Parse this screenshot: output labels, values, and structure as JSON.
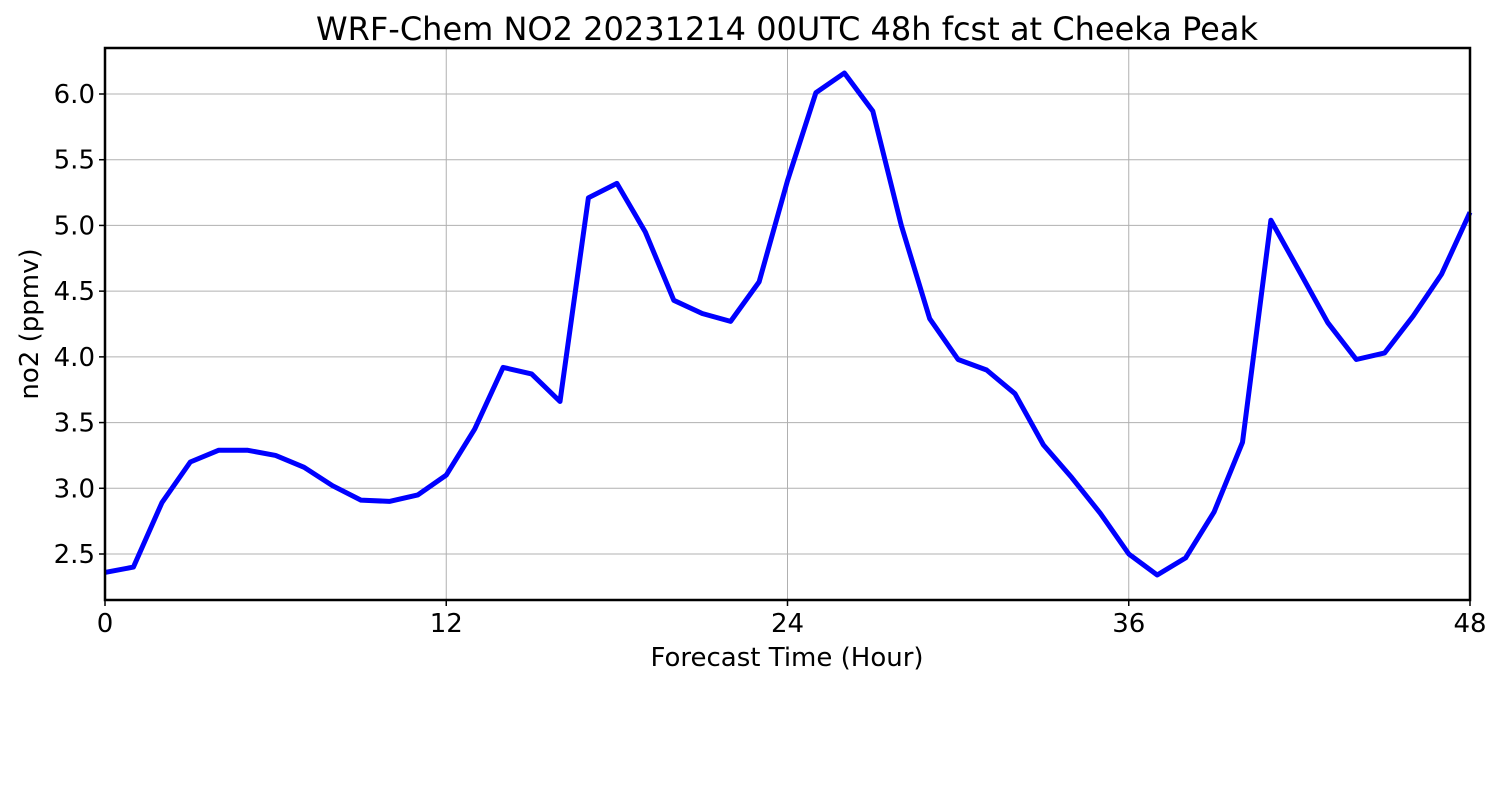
{
  "chart_data": {
    "type": "line",
    "title": "WRF-Chem NO2  20231214 00UTC 48h fcst at Cheeka Peak",
    "xlabel": "Forecast Time (Hour)",
    "ylabel": "no2  (ppmv)",
    "xlim": [
      0,
      48
    ],
    "ylim": [
      2.15,
      6.35
    ],
    "xticks": [
      0,
      12,
      24,
      36,
      48
    ],
    "xtick_labels": [
      "0",
      "12",
      "24",
      "36",
      "48"
    ],
    "yticks": [
      2.5,
      3.0,
      3.5,
      4.0,
      4.5,
      5.0,
      5.5,
      6.0
    ],
    "ytick_labels": [
      "2.5",
      "3.0",
      "3.5",
      "4.0",
      "4.5",
      "5.0",
      "5.5",
      "6.0"
    ],
    "grid": true,
    "series": [
      {
        "color": "#0000ff",
        "x": [
          0,
          1,
          2,
          3,
          4,
          5,
          6,
          7,
          8,
          9,
          10,
          11,
          12,
          13,
          14,
          15,
          16,
          17,
          18,
          19,
          20,
          21,
          22,
          23,
          24,
          25,
          26,
          27,
          28,
          29,
          30,
          31,
          32,
          33,
          34,
          35,
          36,
          37,
          38,
          39,
          40,
          41,
          42,
          43,
          44,
          45,
          46,
          47,
          48
        ],
        "values": [
          2.36,
          2.4,
          2.89,
          3.2,
          3.29,
          3.29,
          3.25,
          3.16,
          3.02,
          2.91,
          2.9,
          2.95,
          3.1,
          3.45,
          3.92,
          3.87,
          3.66,
          5.21,
          5.32,
          4.95,
          4.43,
          4.33,
          4.27,
          4.57,
          5.34,
          6.01,
          6.16,
          5.87,
          5.0,
          4.29,
          3.98,
          3.9,
          3.72,
          3.33,
          3.08,
          2.81,
          2.5,
          2.34,
          2.47,
          2.82,
          3.35,
          5.04,
          4.65,
          4.26,
          3.98,
          4.03,
          4.31,
          4.63,
          5.1
        ]
      }
    ]
  }
}
